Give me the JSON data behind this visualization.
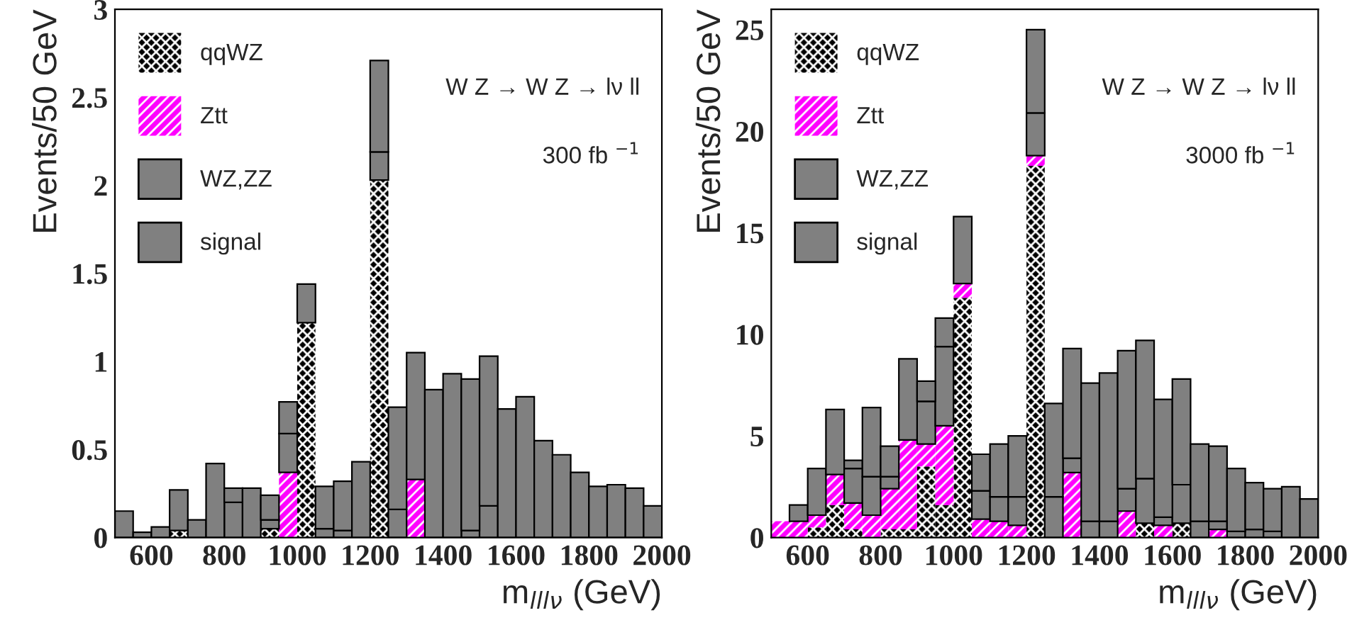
{
  "chart_data": [
    {
      "type": "bar",
      "stacked": true,
      "xlabel": "m$_{lllν}$ (GeV)",
      "ylabel": "Events/50 GeV",
      "legend": "top left",
      "x": [
        525,
        575,
        625,
        675,
        725,
        775,
        825,
        875,
        925,
        975,
        1025,
        1075,
        1125,
        1175,
        1225,
        1275,
        1325,
        1375,
        1425,
        1475,
        1525,
        1575,
        1625,
        1675,
        1725,
        1775,
        1825,
        1875,
        1925,
        1975
      ],
      "xlim": [
        500,
        2000
      ],
      "xticks": [
        600,
        800,
        1000,
        1200,
        1400,
        1600,
        1800,
        2000
      ],
      "ylim": [
        0,
        3
      ],
      "yticks": [
        0,
        0.5,
        1,
        1.5,
        2,
        2.5,
        3
      ],
      "annotations": [
        "W Z → W Z → lν ll",
        "300 fb $^{−1}$"
      ],
      "series": [
        {
          "name": "qqWZ",
          "color": "#000000",
          "values": [
            0,
            0,
            0,
            0.04,
            0,
            0,
            0,
            0,
            0.05,
            0,
            1.22,
            0,
            0,
            0,
            2.03,
            0,
            0,
            0,
            0,
            0,
            0,
            0,
            0,
            0,
            0,
            0,
            0,
            0,
            0,
            0
          ]
        },
        {
          "name": "Ztt",
          "color": "#ff00ff",
          "values": [
            0,
            0,
            0,
            0,
            0,
            0,
            0,
            0,
            0,
            0.37,
            0,
            0,
            0,
            0,
            0,
            0,
            0.33,
            0,
            0,
            0,
            0,
            0,
            0,
            0,
            0,
            0,
            0,
            0,
            0,
            0
          ]
        },
        {
          "name": "WZ,ZZ",
          "color": "#808080",
          "values": [
            0.15,
            0,
            0,
            0,
            0,
            0,
            0.2,
            0,
            0.05,
            0.22,
            0,
            0.05,
            0.04,
            0,
            0.16,
            0.16,
            0,
            0,
            0,
            0.04,
            0.18,
            0,
            0,
            0,
            0,
            0,
            0,
            0,
            0,
            0
          ]
        },
        {
          "name": "signal",
          "color": "#808080",
          "values": [
            0,
            0.03,
            0.06,
            0.23,
            0.1,
            0.42,
            0.08,
            0.28,
            0.14,
            0.18,
            0.22,
            0.24,
            0.28,
            0.43,
            0.52,
            0.58,
            0.72,
            0.84,
            0.93,
            0.86,
            0.85,
            0.73,
            0.8,
            0.55,
            0.47,
            0.37,
            0.29,
            0.3,
            0.28,
            0.18
          ]
        }
      ]
    },
    {
      "type": "bar",
      "stacked": true,
      "xlabel": "m$_{lllν}$ (GeV)",
      "ylabel": "Events/50 GeV",
      "legend": "top left",
      "x": [
        525,
        575,
        625,
        675,
        725,
        775,
        825,
        875,
        925,
        975,
        1025,
        1075,
        1125,
        1175,
        1225,
        1275,
        1325,
        1375,
        1425,
        1475,
        1525,
        1575,
        1625,
        1675,
        1725,
        1775,
        1825,
        1875,
        1925,
        1975
      ],
      "xlim": [
        500,
        2000
      ],
      "xticks": [
        600,
        800,
        1000,
        1200,
        1400,
        1600,
        1800,
        2000
      ],
      "ylim": [
        0,
        26
      ],
      "yticks": [
        0,
        5,
        10,
        15,
        20,
        25
      ],
      "annotations": [
        "W Z → W Z → lν ll",
        "3000 fb $^{−1}$"
      ],
      "series": [
        {
          "name": "qqWZ",
          "color": "#000000",
          "values": [
            0,
            0,
            0.5,
            1.6,
            0.4,
            0,
            0.4,
            0.4,
            3.5,
            1.6,
            11.8,
            0,
            0,
            0,
            18.3,
            0,
            0,
            0,
            0,
            0,
            0.7,
            0,
            0.7,
            0,
            0,
            0,
            0,
            0,
            0,
            0
          ]
        },
        {
          "name": "Ztt",
          "color": "#ff00ff",
          "values": [
            0.8,
            0.8,
            0.6,
            1.5,
            1.3,
            1.1,
            2.0,
            4.4,
            1.1,
            3.9,
            0.7,
            0.9,
            0.8,
            0.6,
            0.5,
            0,
            3.2,
            0,
            0,
            1.3,
            0,
            0.6,
            0,
            0,
            0.4,
            0,
            0,
            0,
            0,
            0
          ]
        },
        {
          "name": "WZ,ZZ",
          "color": "#808080",
          "values": [
            0,
            0.8,
            2.3,
            3.2,
            1.7,
            1.9,
            0.6,
            0,
            2.1,
            3.9,
            0,
            1.4,
            1.2,
            1.4,
            2.1,
            2.0,
            0.7,
            0.8,
            0.8,
            1.1,
            2.2,
            0.4,
            1.9,
            0.8,
            0.4,
            0.3,
            0.4,
            0.3,
            0,
            0
          ]
        },
        {
          "name": "signal",
          "color": "#808080",
          "values": [
            0,
            0,
            0,
            0,
            0.4,
            3.4,
            1.5,
            4.0,
            1.0,
            1.4,
            3.3,
            1.8,
            2.6,
            3.0,
            4.1,
            4.6,
            5.4,
            6.8,
            7.3,
            6.8,
            6.8,
            5.8,
            5.2,
            3.8,
            3.7,
            3.1,
            2.3,
            2.1,
            2.5,
            1.9
          ]
        }
      ]
    }
  ]
}
